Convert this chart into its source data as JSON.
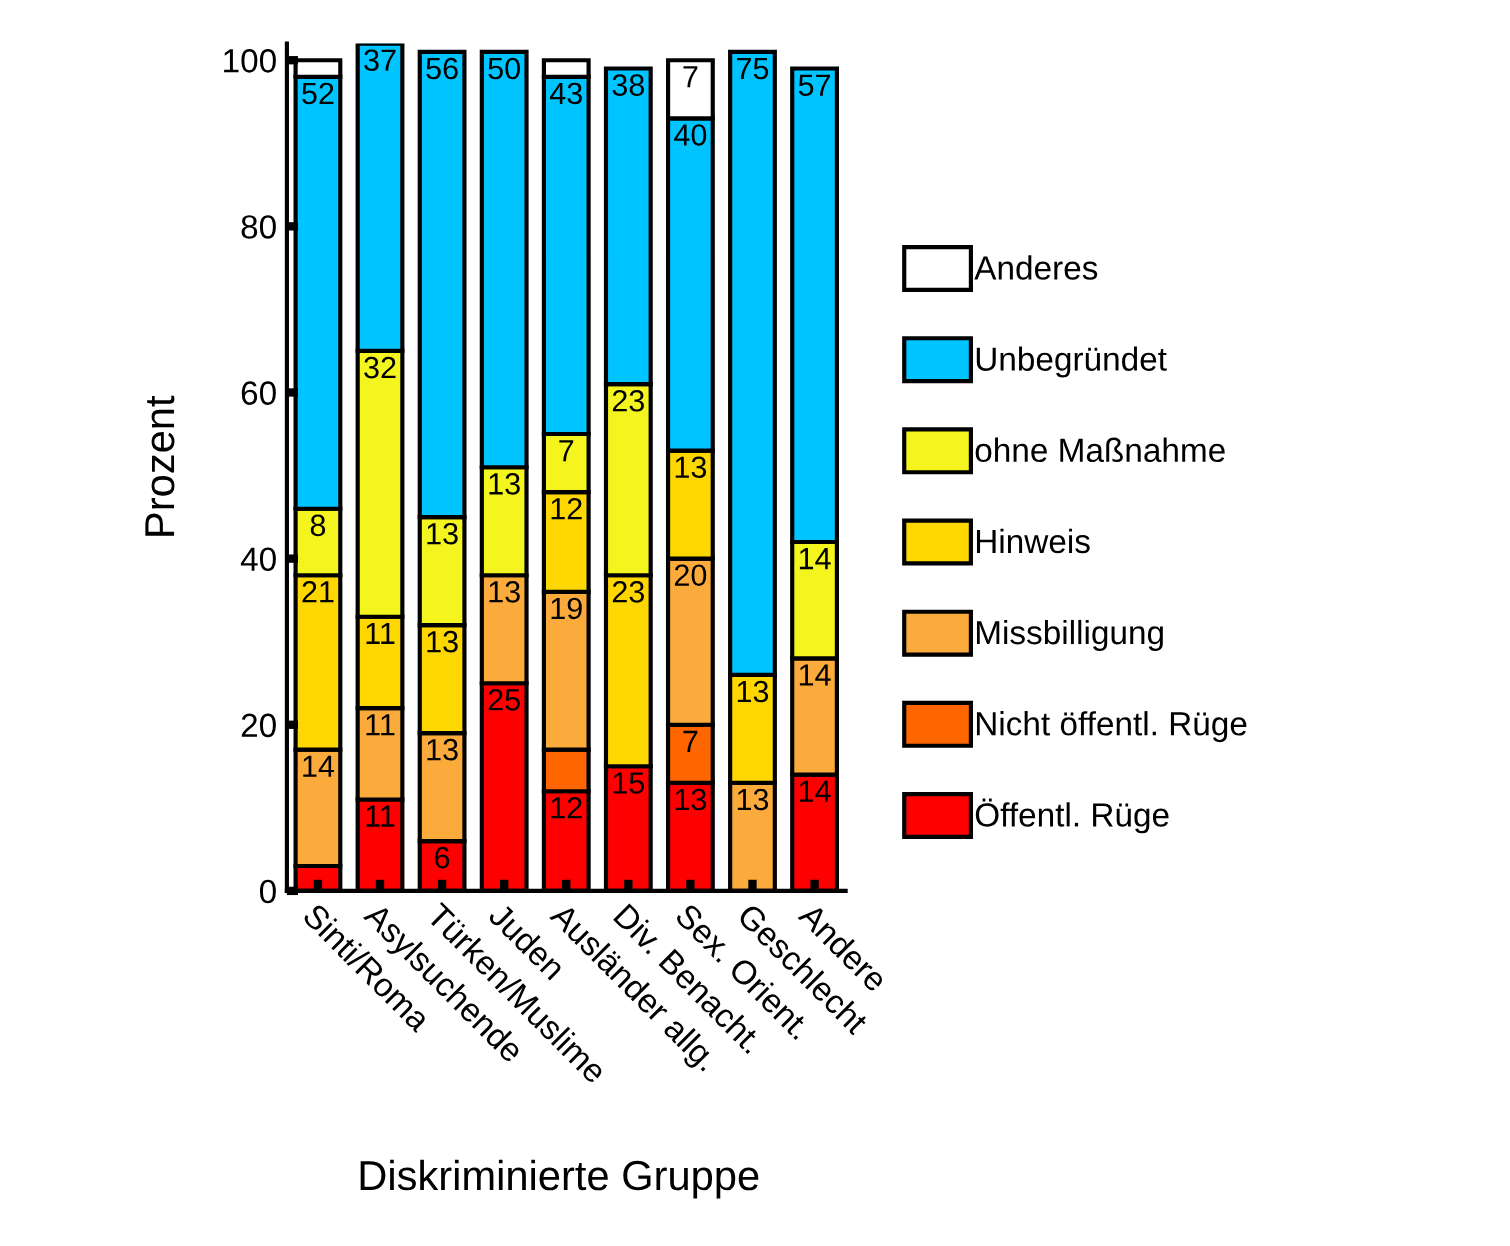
{
  "chart_data": {
    "type": "bar",
    "stacked": true,
    "xlabel": "Diskriminierte Gruppe",
    "ylabel": "Prozent",
    "categories": [
      "Sinti/Roma",
      "Asylsuchende",
      "Türken/Muslime",
      "Juden",
      "Ausländer allg.",
      "Div. Benacht.",
      "Sex. Orient.",
      "Geschlecht",
      "Andere"
    ],
    "ylim": [
      0,
      102
    ],
    "yticks": [
      0,
      20,
      40,
      60,
      80,
      100
    ],
    "grid": false,
    "legend": "right",
    "series": [
      {
        "name": "Öffentl. Rüge",
        "color": "#ff0000",
        "values": [
          3,
          11,
          6,
          25,
          12,
          15,
          13,
          null,
          14
        ],
        "value_labels": [
          null,
          "11",
          "6",
          "25",
          "12",
          "15",
          "13",
          null,
          "14"
        ]
      },
      {
        "name": "Nicht öffentl. Rüge",
        "color": "#ff6600",
        "values": [
          null,
          null,
          null,
          null,
          5,
          null,
          7,
          null,
          null
        ],
        "value_labels": [
          null,
          null,
          null,
          null,
          null,
          null,
          "7",
          null,
          null
        ]
      },
      {
        "name": "Missbilligung",
        "color": "#fbaa3c",
        "values": [
          14,
          11,
          13,
          13,
          19,
          null,
          20,
          13,
          14
        ],
        "value_labels": [
          "14",
          "11",
          "13",
          "13",
          "19",
          null,
          "20",
          "13",
          "14"
        ]
      },
      {
        "name": "Hinweis",
        "color": "#ffd700",
        "values": [
          21,
          11,
          13,
          null,
          12,
          23,
          13,
          13,
          null
        ],
        "value_labels": [
          "21",
          "11",
          "13",
          null,
          "12",
          "23",
          "13",
          "13",
          null
        ]
      },
      {
        "name": "ohne Maßnahme",
        "color": "#f4f41e",
        "values": [
          8,
          32,
          13,
          13,
          7,
          23,
          null,
          null,
          14
        ],
        "value_labels": [
          "8",
          "32",
          "13",
          "13",
          "7",
          "23",
          null,
          null,
          "14"
        ]
      },
      {
        "name": "Unbegründet",
        "color": "#00c4ff",
        "values": [
          52,
          37,
          56,
          50,
          43,
          38,
          40,
          75,
          57
        ],
        "value_labels": [
          "52",
          "37",
          "56",
          "50",
          "43",
          "38",
          "40",
          "75",
          "57"
        ]
      },
      {
        "name": "Anderes",
        "color": "#ffffff",
        "values": [
          2,
          null,
          null,
          null,
          2,
          null,
          7,
          null,
          null
        ],
        "value_labels": [
          null,
          null,
          null,
          null,
          null,
          null,
          "7",
          null,
          null
        ]
      }
    ]
  }
}
